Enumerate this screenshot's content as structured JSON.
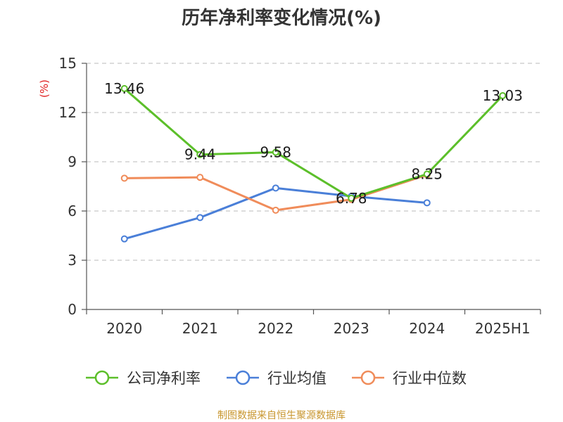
{
  "chart_data": {
    "type": "line",
    "title": "历年净利率变化情况(%)",
    "ylabel": "(%)",
    "xlabel": "",
    "categories": [
      "2020",
      "2021",
      "2022",
      "2023",
      "2024",
      "2025H1"
    ],
    "ylim": [
      0,
      15
    ],
    "yticks": [
      "0",
      "3",
      "6",
      "9",
      "12",
      "15"
    ],
    "grid": true,
    "legend_position": "bottom",
    "series": [
      {
        "name": "公司净利率",
        "color": "#5cbf2a",
        "values": [
          13.46,
          9.44,
          9.58,
          6.78,
          8.25,
          13.03
        ],
        "labels": [
          "13.46",
          "9.44",
          "9.58",
          "6.78",
          "8.25",
          "13.03"
        ]
      },
      {
        "name": "行业均值",
        "color": "#4a7fd8",
        "values": [
          4.3,
          5.6,
          7.4,
          6.9,
          6.5,
          null
        ]
      },
      {
        "name": "行业中位数",
        "color": "#f08c5a",
        "values": [
          8.0,
          8.05,
          6.05,
          6.7,
          8.2,
          null
        ]
      }
    ],
    "source": "制图数据来自恒生聚源数据库"
  }
}
